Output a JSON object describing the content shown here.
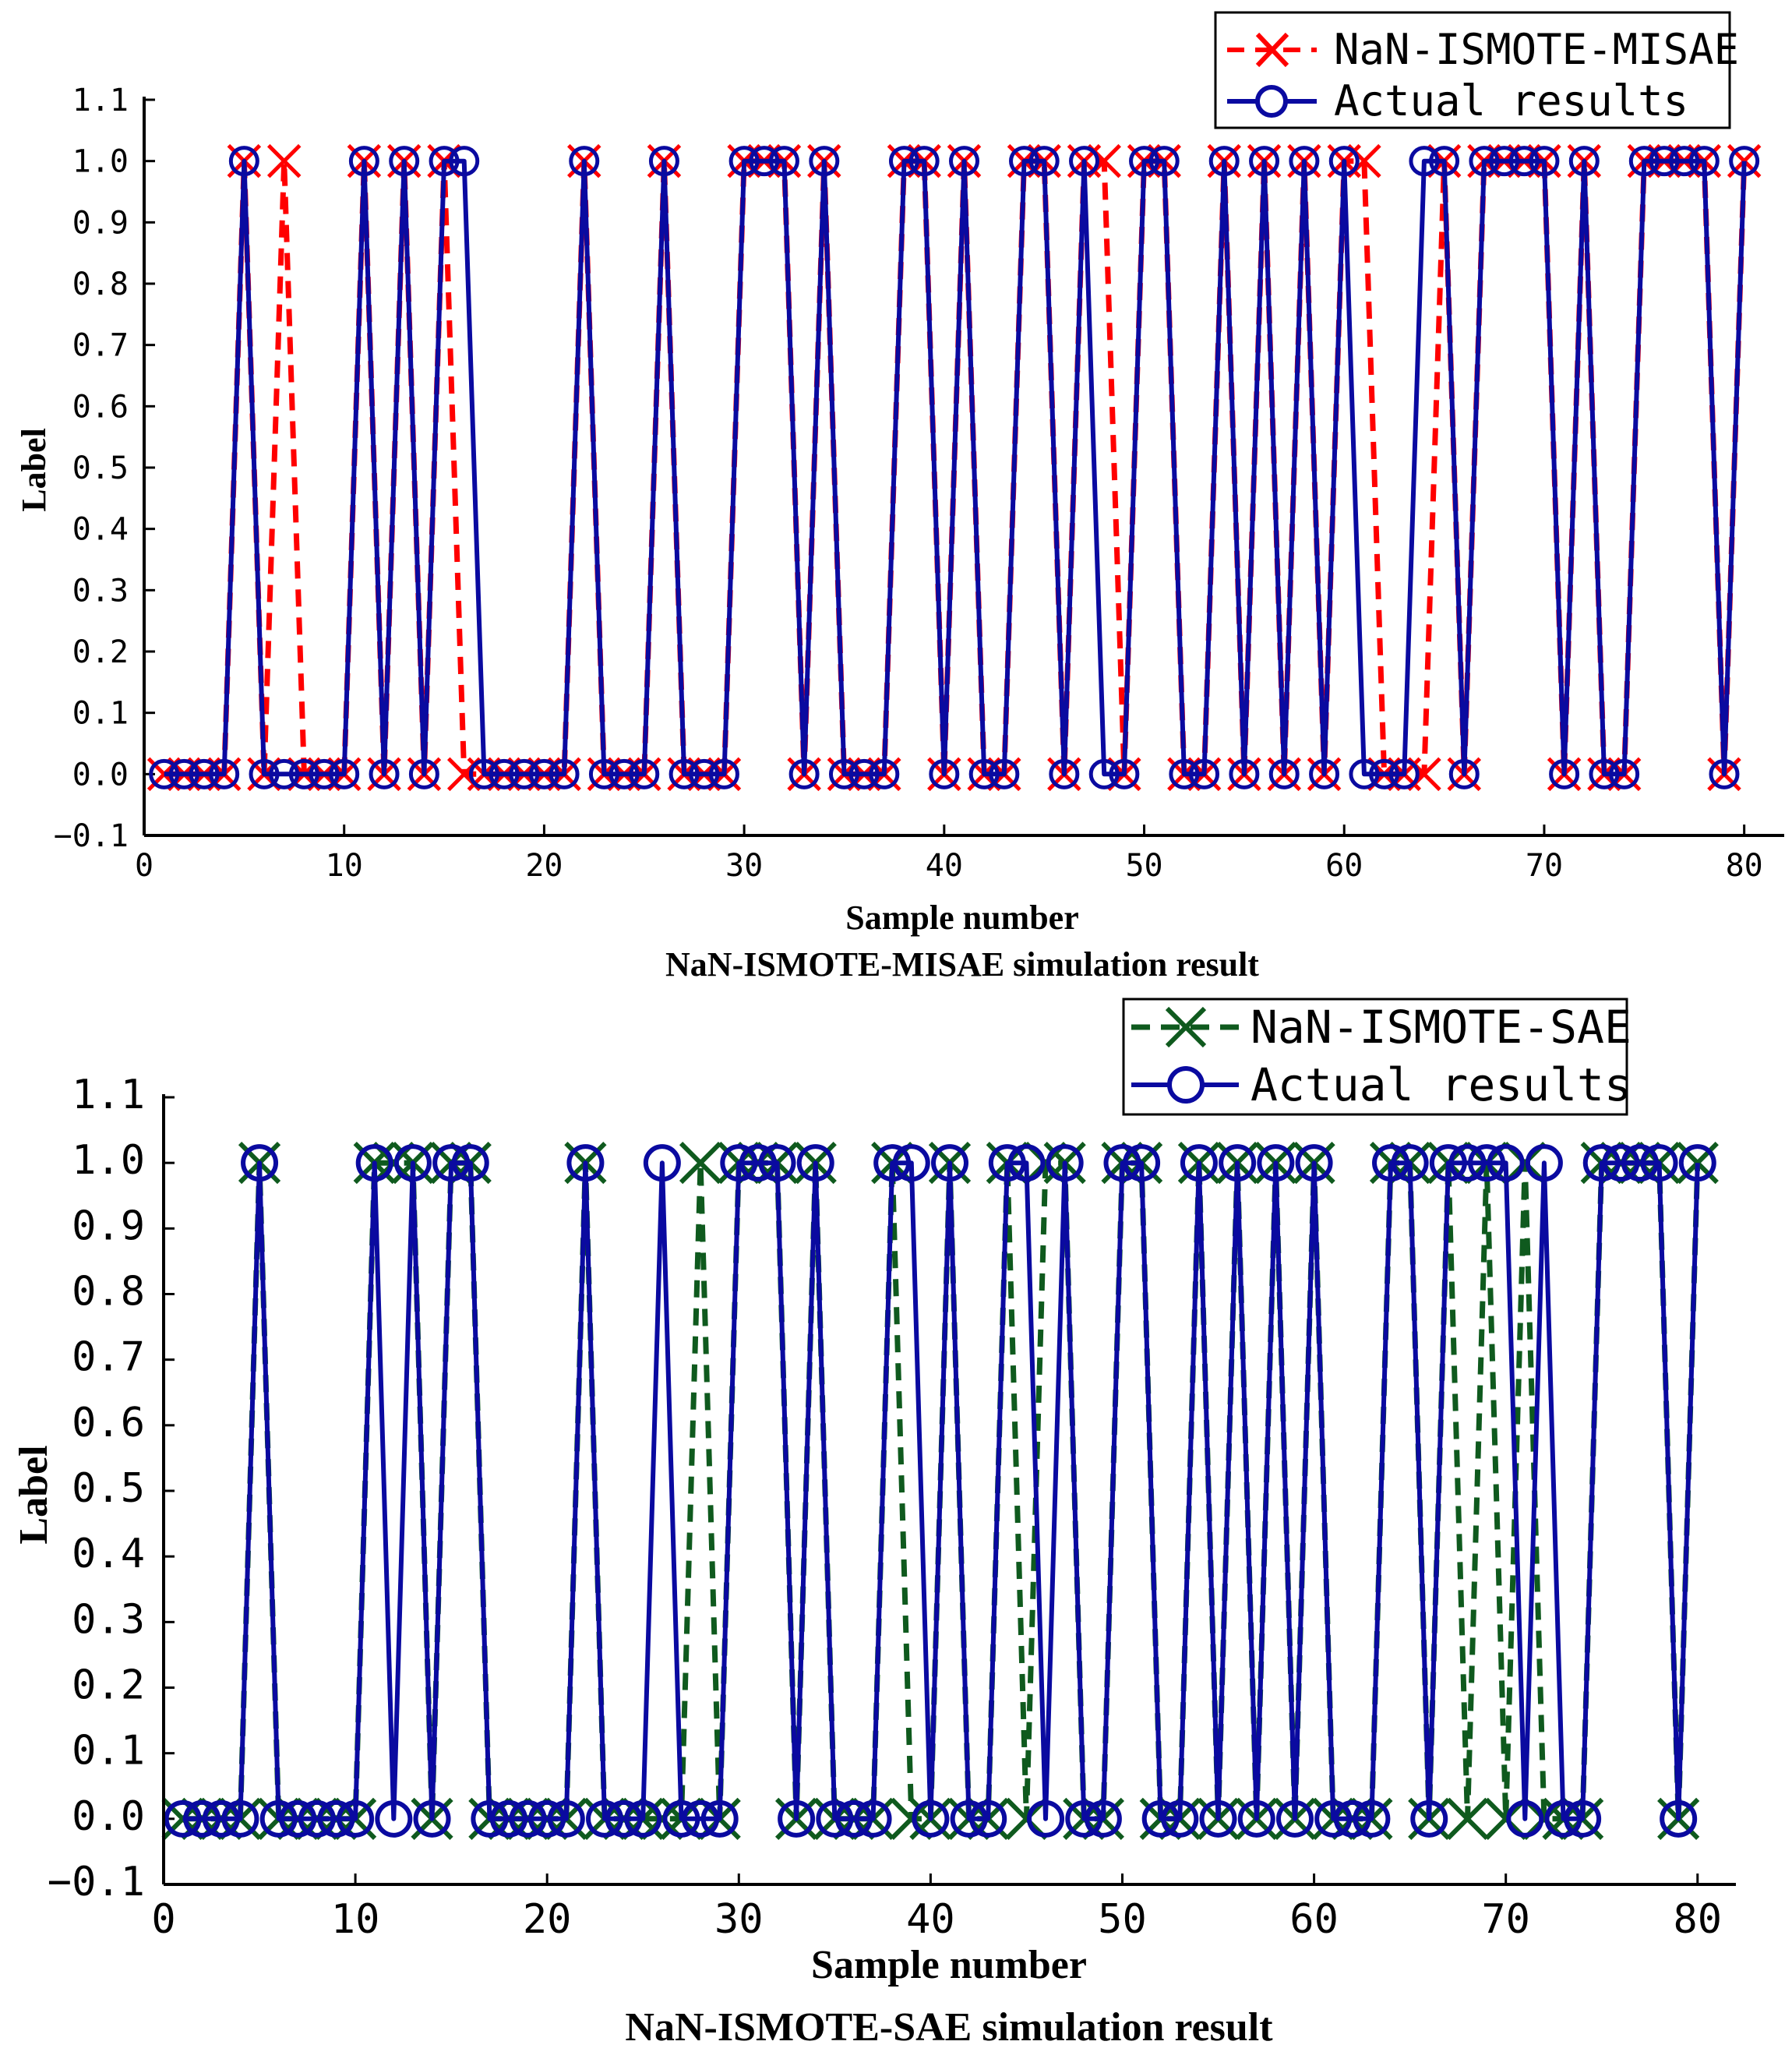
{
  "chart_data": [
    {
      "type": "line",
      "caption": "NaN-ISMOTE-MISAE simulation result",
      "xlabel": "Sample number",
      "ylabel": "Label",
      "xlim": [
        0,
        82
      ],
      "ylim": [
        -0.1,
        1.1
      ],
      "xticks": [
        0,
        10,
        20,
        30,
        40,
        50,
        60,
        70,
        80
      ],
      "yticks": [
        -0.1,
        0.0,
        0.1,
        0.2,
        0.3,
        0.4,
        0.5,
        0.6,
        0.7,
        0.8,
        0.9,
        1.0,
        1.1
      ],
      "ytick_labels": [
        "−0.1",
        "0.0",
        "0.1",
        "0.2",
        "0.3",
        "0.4",
        "0.5",
        "0.6",
        "0.7",
        "0.8",
        "0.9",
        "1.0",
        "1.1"
      ],
      "legend_position": "top-right",
      "x": [
        1,
        2,
        3,
        4,
        5,
        6,
        7,
        8,
        9,
        10,
        11,
        12,
        13,
        14,
        15,
        16,
        17,
        18,
        19,
        20,
        21,
        22,
        23,
        24,
        25,
        26,
        27,
        28,
        29,
        30,
        31,
        32,
        33,
        34,
        35,
        36,
        37,
        38,
        39,
        40,
        41,
        42,
        43,
        44,
        45,
        46,
        47,
        48,
        49,
        50,
        51,
        52,
        53,
        54,
        55,
        56,
        57,
        58,
        59,
        60,
        61,
        62,
        63,
        64,
        65,
        66,
        67,
        68,
        69,
        70,
        71,
        72,
        73,
        74,
        75,
        76,
        77,
        78,
        79,
        80
      ],
      "series": [
        {
          "name": "NaN-ISMOTE-MISAE",
          "color": "#ff0000",
          "line_style": "dashed",
          "marker": "x",
          "values": [
            0,
            0,
            0,
            0,
            1,
            0,
            1,
            0,
            0,
            0,
            1,
            0,
            1,
            0,
            1,
            0,
            0,
            0,
            0,
            0,
            0,
            1,
            0,
            0,
            0,
            1,
            0,
            0,
            0,
            1,
            1,
            1,
            0,
            1,
            0,
            0,
            0,
            1,
            1,
            0,
            1,
            0,
            0,
            1,
            1,
            0,
            1,
            1,
            0,
            1,
            1,
            0,
            0,
            1,
            0,
            1,
            0,
            1,
            0,
            1,
            1,
            0,
            0,
            0,
            1,
            0,
            1,
            1,
            1,
            1,
            0,
            1,
            0,
            0,
            1,
            1,
            1,
            1,
            0,
            1
          ]
        },
        {
          "name": "Actual results",
          "color": "#0a0aa0",
          "line_style": "solid",
          "marker": "o",
          "values": [
            0,
            0,
            0,
            0,
            1,
            0,
            0,
            0,
            0,
            0,
            1,
            0,
            1,
            0,
            1,
            1,
            0,
            0,
            0,
            0,
            0,
            1,
            0,
            0,
            0,
            1,
            0,
            0,
            0,
            1,
            1,
            1,
            0,
            1,
            0,
            0,
            0,
            1,
            1,
            0,
            1,
            0,
            0,
            1,
            1,
            0,
            1,
            0,
            0,
            1,
            1,
            0,
            0,
            1,
            0,
            1,
            0,
            1,
            0,
            1,
            0,
            0,
            0,
            1,
            1,
            0,
            1,
            1,
            1,
            1,
            0,
            1,
            0,
            0,
            1,
            1,
            1,
            1,
            0,
            1
          ]
        }
      ]
    },
    {
      "type": "line",
      "caption": "NaN-ISMOTE-SAE simulation result",
      "xlabel": "Sample number",
      "ylabel": "Label",
      "xlim": [
        0,
        82
      ],
      "ylim": [
        -0.1,
        1.1
      ],
      "xticks": [
        0,
        10,
        20,
        30,
        40,
        50,
        60,
        70,
        80
      ],
      "yticks": [
        -0.1,
        0.0,
        0.1,
        0.2,
        0.3,
        0.4,
        0.5,
        0.6,
        0.7,
        0.8,
        0.9,
        1.0,
        1.1
      ],
      "ytick_labels": [
        "−0.1",
        "0.0",
        "0.1",
        "0.2",
        "0.3",
        "0.4",
        "0.5",
        "0.6",
        "0.7",
        "0.8",
        "0.9",
        "1.0",
        "1.1"
      ],
      "legend_position": "top-right",
      "x": [
        1,
        2,
        3,
        4,
        5,
        6,
        7,
        8,
        9,
        10,
        11,
        12,
        13,
        14,
        15,
        16,
        17,
        18,
        19,
        20,
        21,
        22,
        23,
        24,
        25,
        26,
        27,
        28,
        29,
        30,
        31,
        32,
        33,
        34,
        35,
        36,
        37,
        38,
        39,
        40,
        41,
        42,
        43,
        44,
        45,
        46,
        47,
        48,
        49,
        50,
        51,
        52,
        53,
        54,
        55,
        56,
        57,
        58,
        59,
        60,
        61,
        62,
        63,
        64,
        65,
        66,
        67,
        68,
        69,
        70,
        71,
        72,
        73,
        74,
        75,
        76,
        77,
        78,
        79,
        80
      ],
      "series": [
        {
          "name": "NaN-ISMOTE-SAE",
          "color": "#0f5a1e",
          "line_style": "dashed",
          "marker": "x",
          "values": [
            0,
            0,
            0,
            0,
            1,
            0,
            0,
            0,
            0,
            0,
            1,
            1,
            1,
            0,
            1,
            1,
            0,
            0,
            0,
            0,
            0,
            1,
            0,
            0,
            0,
            0,
            0,
            1,
            0,
            1,
            1,
            1,
            0,
            1,
            0,
            0,
            0,
            1,
            0,
            0,
            1,
            0,
            0,
            1,
            0,
            1,
            1,
            0,
            0,
            1,
            1,
            0,
            0,
            1,
            0,
            1,
            0,
            1,
            0,
            1,
            0,
            0,
            0,
            1,
            1,
            0,
            1,
            0,
            1,
            0,
            1,
            0,
            0,
            0,
            1,
            1,
            1,
            1,
            0,
            1
          ]
        },
        {
          "name": "Actual results",
          "color": "#0a0aa0",
          "line_style": "solid",
          "marker": "o",
          "values": [
            0,
            0,
            0,
            0,
            1,
            0,
            0,
            0,
            0,
            0,
            1,
            0,
            1,
            0,
            1,
            1,
            0,
            0,
            0,
            0,
            0,
            1,
            0,
            0,
            0,
            1,
            0,
            0,
            0,
            1,
            1,
            1,
            0,
            1,
            0,
            0,
            0,
            1,
            1,
            0,
            1,
            0,
            0,
            1,
            1,
            0,
            1,
            0,
            0,
            1,
            1,
            0,
            0,
            1,
            0,
            1,
            0,
            1,
            0,
            1,
            0,
            0,
            0,
            1,
            1,
            0,
            1,
            1,
            1,
            1,
            0,
            1,
            0,
            0,
            1,
            1,
            1,
            1,
            0,
            1
          ]
        }
      ]
    }
  ]
}
